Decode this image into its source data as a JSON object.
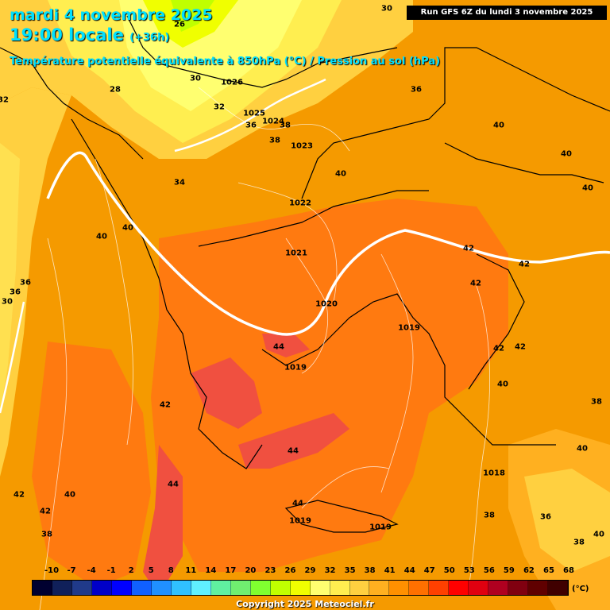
{
  "header": {
    "date_line": "mardi 4 novembre 2025",
    "time_line": "19:00 locale",
    "offset": "(+36h)",
    "parameter": "Température potentielle équivalente à 850hPa (°C) / Pression au sol (hPa)",
    "run_info": "Run GFS 6Z du lundi 3 novembre 2025"
  },
  "legend": {
    "ticks": [
      "-10",
      "-7",
      "-4",
      "-1",
      "2",
      "5",
      "8",
      "11",
      "14",
      "17",
      "20",
      "23",
      "26",
      "29",
      "32",
      "35",
      "38",
      "41",
      "44",
      "47",
      "50",
      "53",
      "56",
      "59",
      "62",
      "65",
      "68"
    ],
    "colors": [
      "#000030",
      "#10205a",
      "#203a8a",
      "#0000c8",
      "#0000ff",
      "#1060ff",
      "#2090ff",
      "#30c0ff",
      "#60f0ff",
      "#60f0a0",
      "#70ee70",
      "#80ff30",
      "#c0ff00",
      "#f0ff00",
      "#ffff70",
      "#ffee50",
      "#ffd040",
      "#ffb020",
      "#ff9000",
      "#ff7000",
      "#ff4000",
      "#ff0000",
      "#e00010",
      "#b00020",
      "#800010",
      "#600000",
      "#400000"
    ],
    "unit": "(°C)"
  },
  "map_labels": {
    "isotherms": [
      "26",
      "30",
      "28",
      "30",
      "32",
      "32",
      "36",
      "38",
      "38",
      "34",
      "36",
      "40",
      "40",
      "40",
      "40",
      "40",
      "42",
      "42",
      "42",
      "42",
      "42",
      "44",
      "44",
      "44",
      "42",
      "42",
      "40",
      "40",
      "42",
      "38",
      "44",
      "38",
      "36",
      "36",
      "30",
      "36",
      "38",
      "40",
      "40",
      "38",
      "40"
    ],
    "isobars": [
      "1026",
      "1025",
      "1024",
      "1023",
      "1022",
      "1021",
      "1020",
      "1019",
      "1019",
      "1019",
      "1019",
      "1018"
    ]
  },
  "copyright": "Copyright 2025 Meteociel.fr"
}
